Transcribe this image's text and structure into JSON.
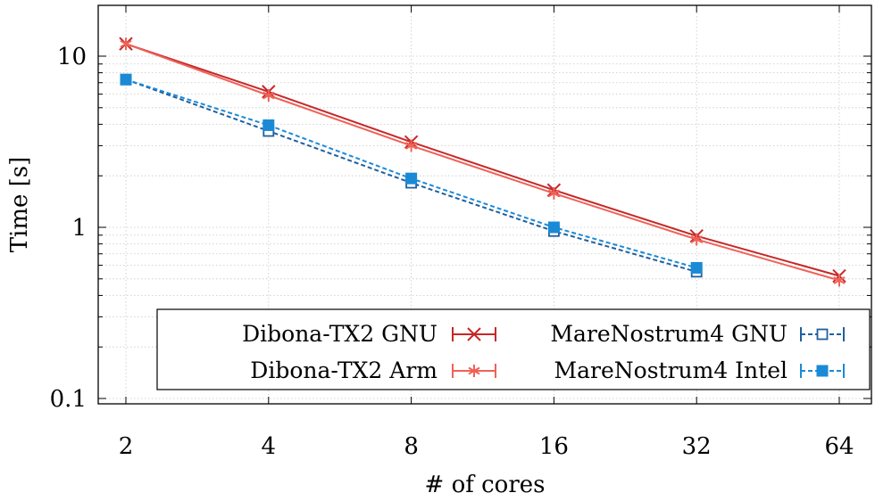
{
  "chart_data": {
    "type": "line",
    "title": "",
    "xlabel": "# of cores",
    "ylabel": "Time [s]",
    "x_scale": "log2",
    "y_scale": "log10",
    "x": [
      2,
      4,
      8,
      16,
      32,
      64
    ],
    "x_tick_labels": [
      "2",
      "4",
      "8",
      "16",
      "32",
      "64"
    ],
    "y_tick_labels": [
      "0.1",
      "1",
      "10"
    ],
    "y_ticks": [
      0.1,
      1,
      10
    ],
    "xlim": [
      2,
      64
    ],
    "ylim": [
      0.08,
      20
    ],
    "grid": true,
    "legend_position": "bottom-right",
    "series": [
      {
        "name": "Dibona-TX2 GNU",
        "x": [
          2,
          4,
          8,
          16,
          32,
          64
        ],
        "values": [
          11.8,
          6.2,
          3.15,
          1.65,
          0.89,
          0.52
        ],
        "color": "#c62828",
        "marker": "x",
        "dash": "solid"
      },
      {
        "name": "Dibona-TX2 Arm",
        "x": [
          2,
          4,
          8,
          16,
          32,
          64
        ],
        "values": [
          11.8,
          5.9,
          3.0,
          1.58,
          0.85,
          0.49
        ],
        "color": "#ef6257",
        "marker": "asterisk",
        "dash": "solid"
      },
      {
        "name": "MareNostrum4 GNU",
        "x": [
          2,
          4,
          8,
          16,
          32
        ],
        "values": [
          7.3,
          3.65,
          1.82,
          0.95,
          0.55
        ],
        "color": "#1f5f9e",
        "marker": "square-open",
        "dash": "dashed"
      },
      {
        "name": "MareNostrum4 Intel",
        "x": [
          2,
          4,
          8,
          16,
          32
        ],
        "values": [
          7.3,
          3.95,
          1.93,
          1.0,
          0.58
        ],
        "color": "#1b8ad6",
        "marker": "square-filled",
        "dash": "dashed"
      }
    ]
  }
}
